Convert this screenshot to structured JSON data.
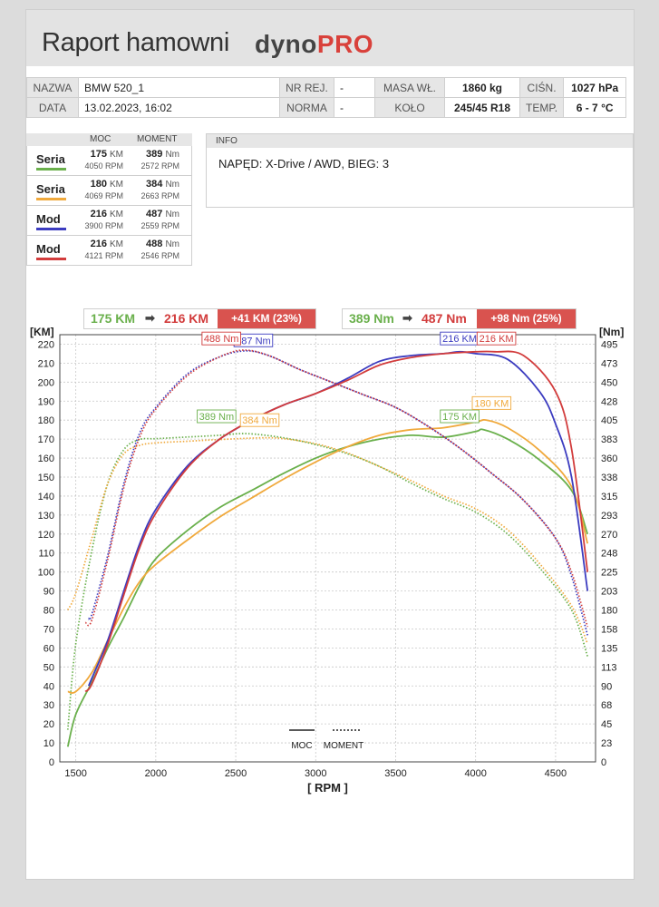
{
  "header": {
    "title": "Raport hamowni",
    "logo_a": "dyno",
    "logo_b": "PRO"
  },
  "info_table": {
    "nazwa_label": "NAZWA",
    "nazwa": "BMW 520_1",
    "nr_rej_label": "NR REJ.",
    "nr_rej": "-",
    "masa_label": "MASA WŁ.",
    "masa": "1860 kg",
    "cisn_label": "CIŚN.",
    "cisn": "1027 hPa",
    "data_label": "DATA",
    "data": "13.02.2023, 16:02",
    "norma_label": "NORMA",
    "norma": "-",
    "kolo_label": "KOŁO",
    "kolo": "245/45 R18",
    "temp_label": "TEMP.",
    "temp": "6 - 7 °C"
  },
  "runs_head": {
    "moc": "MOC",
    "moment": "MOMENT"
  },
  "runs": [
    {
      "name": "Seria",
      "color": "#6ab04c",
      "power": "175",
      "power_unit": "KM",
      "power_rpm": "4050 RPM",
      "torque": "389",
      "torque_unit": "Nm",
      "torque_rpm": "2572 RPM"
    },
    {
      "name": "Seria",
      "color": "#f0a93c",
      "power": "180",
      "power_unit": "KM",
      "power_rpm": "4069 RPM",
      "torque": "384",
      "torque_unit": "Nm",
      "torque_rpm": "2663 RPM"
    },
    {
      "name": "Mod",
      "color": "#3c3cc0",
      "power": "216",
      "power_unit": "KM",
      "power_rpm": "3900 RPM",
      "torque": "487",
      "torque_unit": "Nm",
      "torque_rpm": "2559 RPM"
    },
    {
      "name": "Mod",
      "color": "#d23c3c",
      "power": "216",
      "power_unit": "KM",
      "power_rpm": "4121 RPM",
      "torque": "488",
      "torque_unit": "Nm",
      "torque_rpm": "2546 RPM"
    }
  ],
  "info_box": {
    "label": "INFO",
    "text": "NAPĘD: X-Drive / AWD,  BIEG: 3"
  },
  "summary": {
    "power_from": "175 KM",
    "power_to": "216 KM",
    "power_diff": "+41 KM  (23%)",
    "torque_from": "389 Nm",
    "torque_to": "487 Nm",
    "torque_diff": "+98 Nm  (25%)",
    "from_color": "#6ab04c",
    "to_color": "#d23c3c"
  },
  "chart_data": {
    "type": "line",
    "xlabel": "[ RPM ]",
    "ylabel_left": "[KM]",
    "ylabel_right": "[Nm]",
    "xlim": [
      1400,
      4750
    ],
    "ylim": [
      0,
      225
    ],
    "x_ticks": [
      1500,
      2000,
      2500,
      3000,
      3500,
      4000,
      4500
    ],
    "y_ticks_left": [
      0,
      10,
      20,
      30,
      40,
      50,
      60,
      70,
      80,
      90,
      100,
      110,
      120,
      130,
      140,
      150,
      160,
      170,
      180,
      190,
      200,
      210,
      220
    ],
    "y_ticks_right": [
      "0",
      "23",
      "45",
      "68",
      "90",
      "113",
      "135",
      "158",
      "180",
      "203",
      "225",
      "248",
      "270",
      "293",
      "315",
      "338",
      "360",
      "383",
      "405",
      "428",
      "450",
      "473",
      "495"
    ],
    "torque_scale": 2.25,
    "legend": {
      "moc": "MOC",
      "moment": "MOMENT"
    },
    "grid": true,
    "series": [
      {
        "name": "Seria",
        "color": "#6ab04c",
        "power": [
          [
            1450,
            8
          ],
          [
            1500,
            25
          ],
          [
            1600,
            42
          ],
          [
            1700,
            60
          ],
          [
            1800,
            76
          ],
          [
            1900,
            93
          ],
          [
            2000,
            107
          ],
          [
            2200,
            122
          ],
          [
            2400,
            134
          ],
          [
            2600,
            143
          ],
          [
            2800,
            152
          ],
          [
            3000,
            160
          ],
          [
            3200,
            166
          ],
          [
            3400,
            170
          ],
          [
            3600,
            172
          ],
          [
            3800,
            171
          ],
          [
            4000,
            174
          ],
          [
            4050,
            175
          ],
          [
            4200,
            170
          ],
          [
            4400,
            159
          ],
          [
            4600,
            143
          ],
          [
            4700,
            120
          ]
        ],
        "torque": [
          [
            1450,
            38
          ],
          [
            1500,
            140
          ],
          [
            1600,
            250
          ],
          [
            1700,
            330
          ],
          [
            1800,
            370
          ],
          [
            1900,
            382
          ],
          [
            2000,
            383
          ],
          [
            2200,
            385
          ],
          [
            2400,
            387
          ],
          [
            2572,
            389
          ],
          [
            2800,
            384
          ],
          [
            3000,
            376
          ],
          [
            3200,
            365
          ],
          [
            3400,
            350
          ],
          [
            3600,
            330
          ],
          [
            3800,
            312
          ],
          [
            4000,
            296
          ],
          [
            4200,
            270
          ],
          [
            4400,
            230
          ],
          [
            4600,
            180
          ],
          [
            4700,
            125
          ]
        ],
        "labels": [
          {
            "text": "175 KM",
            "x": 3900,
            "v": 182
          },
          {
            "text": "389 Nm",
            "x": 2380,
            "v": 182
          }
        ]
      },
      {
        "name": "Seria",
        "color": "#f0a93c",
        "power": [
          [
            1450,
            37
          ],
          [
            1500,
            37
          ],
          [
            1600,
            47
          ],
          [
            1700,
            64
          ],
          [
            1800,
            81
          ],
          [
            1900,
            95
          ],
          [
            2000,
            104
          ],
          [
            2200,
            117
          ],
          [
            2400,
            129
          ],
          [
            2600,
            139
          ],
          [
            2800,
            149
          ],
          [
            3000,
            158
          ],
          [
            3200,
            166
          ],
          [
            3400,
            172
          ],
          [
            3600,
            175
          ],
          [
            3800,
            176
          ],
          [
            4000,
            179
          ],
          [
            4069,
            180
          ],
          [
            4200,
            176
          ],
          [
            4400,
            164
          ],
          [
            4600,
            145
          ],
          [
            4700,
            115
          ]
        ],
        "torque": [
          [
            1450,
            180
          ],
          [
            1500,
            200
          ],
          [
            1600,
            265
          ],
          [
            1700,
            330
          ],
          [
            1800,
            365
          ],
          [
            1900,
            375
          ],
          [
            2000,
            378
          ],
          [
            2200,
            380
          ],
          [
            2400,
            382
          ],
          [
            2663,
            384
          ],
          [
            2800,
            383
          ],
          [
            3000,
            377
          ],
          [
            3200,
            366
          ],
          [
            3400,
            350
          ],
          [
            3600,
            333
          ],
          [
            3800,
            315
          ],
          [
            4000,
            300
          ],
          [
            4200,
            275
          ],
          [
            4400,
            235
          ],
          [
            4600,
            185
          ],
          [
            4700,
            140
          ]
        ],
        "labels": [
          {
            "text": "180 KM",
            "x": 4100,
            "v": 189
          },
          {
            "text": "384 Nm",
            "x": 2650,
            "v": 180
          }
        ]
      },
      {
        "name": "Mod",
        "color": "#3c3cc0",
        "power": [
          [
            1580,
            40
          ],
          [
            1600,
            44
          ],
          [
            1700,
            64
          ],
          [
            1800,
            90
          ],
          [
            1900,
            115
          ],
          [
            2000,
            133
          ],
          [
            2200,
            156
          ],
          [
            2400,
            170
          ],
          [
            2600,
            180
          ],
          [
            2800,
            188
          ],
          [
            3000,
            194
          ],
          [
            3200,
            202
          ],
          [
            3400,
            211
          ],
          [
            3600,
            214
          ],
          [
            3800,
            215
          ],
          [
            3900,
            216
          ],
          [
            4000,
            215
          ],
          [
            4200,
            212
          ],
          [
            4400,
            195
          ],
          [
            4500,
            178
          ],
          [
            4600,
            150
          ],
          [
            4700,
            90
          ]
        ],
        "torque": [
          [
            1580,
            170
          ],
          [
            1600,
            175
          ],
          [
            1700,
            245
          ],
          [
            1800,
            330
          ],
          [
            1900,
            390
          ],
          [
            2000,
            420
          ],
          [
            2200,
            460
          ],
          [
            2400,
            480
          ],
          [
            2559,
            487
          ],
          [
            2700,
            482
          ],
          [
            2900,
            465
          ],
          [
            3100,
            450
          ],
          [
            3300,
            435
          ],
          [
            3500,
            420
          ],
          [
            3700,
            398
          ],
          [
            3900,
            372
          ],
          [
            4100,
            342
          ],
          [
            4300,
            310
          ],
          [
            4500,
            265
          ],
          [
            4600,
            220
          ],
          [
            4700,
            150
          ]
        ],
        "labels": [
          {
            "text": "216 KM",
            "x": 3900,
            "v": 223
          },
          {
            "text": "487 Nm",
            "x": 2610,
            "v": 222
          }
        ]
      },
      {
        "name": "Mod",
        "color": "#d23c3c",
        "power": [
          [
            1560,
            37
          ],
          [
            1600,
            41
          ],
          [
            1700,
            62
          ],
          [
            1800,
            88
          ],
          [
            1900,
            113
          ],
          [
            2000,
            131
          ],
          [
            2200,
            155
          ],
          [
            2400,
            170
          ],
          [
            2600,
            180
          ],
          [
            2800,
            188
          ],
          [
            3000,
            194
          ],
          [
            3200,
            201
          ],
          [
            3400,
            209
          ],
          [
            3600,
            213
          ],
          [
            3800,
            215
          ],
          [
            4000,
            216
          ],
          [
            4121,
            216
          ],
          [
            4300,
            214
          ],
          [
            4500,
            195
          ],
          [
            4600,
            165
          ],
          [
            4700,
            100
          ]
        ],
        "torque": [
          [
            1560,
            165
          ],
          [
            1600,
            168
          ],
          [
            1700,
            240
          ],
          [
            1800,
            325
          ],
          [
            1900,
            385
          ],
          [
            2000,
            418
          ],
          [
            2200,
            458
          ],
          [
            2400,
            480
          ],
          [
            2546,
            488
          ],
          [
            2700,
            482
          ],
          [
            2900,
            465
          ],
          [
            3100,
            450
          ],
          [
            3300,
            435
          ],
          [
            3500,
            420
          ],
          [
            3700,
            398
          ],
          [
            3900,
            372
          ],
          [
            4100,
            342
          ],
          [
            4300,
            310
          ],
          [
            4500,
            265
          ],
          [
            4600,
            225
          ],
          [
            4700,
            160
          ]
        ],
        "labels": [
          {
            "text": "216 KM",
            "x": 4130,
            "v": 223
          },
          {
            "text": "488 Nm",
            "x": 2410,
            "v": 223
          }
        ]
      }
    ]
  }
}
